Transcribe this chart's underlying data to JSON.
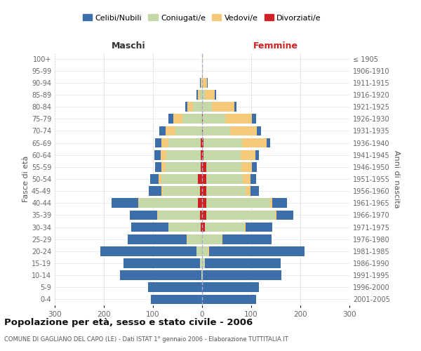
{
  "age_groups": [
    "0-4",
    "5-9",
    "10-14",
    "15-19",
    "20-24",
    "25-29",
    "30-34",
    "35-39",
    "40-44",
    "45-49",
    "50-54",
    "55-59",
    "60-64",
    "65-69",
    "70-74",
    "75-79",
    "80-84",
    "85-89",
    "90-94",
    "95-99",
    "100+"
  ],
  "birth_years": [
    "2001-2005",
    "1996-2000",
    "1991-1995",
    "1986-1990",
    "1981-1985",
    "1976-1980",
    "1971-1975",
    "1966-1970",
    "1961-1965",
    "1956-1960",
    "1951-1955",
    "1946-1950",
    "1941-1945",
    "1936-1940",
    "1931-1935",
    "1926-1930",
    "1921-1925",
    "1916-1920",
    "1911-1915",
    "1906-1910",
    "≤ 1905"
  ],
  "maschi_celibi": [
    105,
    110,
    165,
    155,
    195,
    120,
    75,
    55,
    55,
    25,
    18,
    13,
    12,
    12,
    12,
    10,
    5,
    2,
    1,
    0,
    0
  ],
  "maschi_coniugati": [
    0,
    0,
    2,
    5,
    12,
    30,
    65,
    85,
    120,
    75,
    75,
    72,
    70,
    65,
    55,
    40,
    18,
    5,
    2,
    0,
    0
  ],
  "maschi_vedovi": [
    0,
    0,
    0,
    0,
    0,
    1,
    1,
    2,
    2,
    3,
    5,
    8,
    12,
    15,
    20,
    18,
    12,
    4,
    1,
    0,
    0
  ],
  "maschi_divorziati": [
    0,
    0,
    0,
    0,
    0,
    0,
    3,
    5,
    8,
    5,
    8,
    3,
    3,
    3,
    0,
    0,
    0,
    0,
    0,
    0,
    0
  ],
  "femmine_celibi": [
    110,
    115,
    160,
    155,
    195,
    100,
    55,
    35,
    30,
    18,
    12,
    10,
    8,
    8,
    8,
    8,
    5,
    3,
    1,
    0,
    0
  ],
  "femmine_coniugati": [
    0,
    0,
    2,
    5,
    12,
    40,
    80,
    140,
    130,
    80,
    75,
    72,
    75,
    78,
    55,
    45,
    20,
    5,
    2,
    0,
    0
  ],
  "femmine_vedovi": [
    0,
    0,
    0,
    0,
    2,
    2,
    3,
    3,
    5,
    10,
    15,
    22,
    30,
    50,
    55,
    55,
    45,
    20,
    8,
    2,
    1
  ],
  "femmine_divorziati": [
    0,
    0,
    0,
    0,
    0,
    0,
    5,
    8,
    8,
    8,
    8,
    8,
    3,
    3,
    2,
    2,
    0,
    0,
    0,
    0,
    0
  ],
  "colors": {
    "celibi": "#3c6faa",
    "coniugati": "#c5d9a8",
    "vedovi": "#f5c97a",
    "divorziati": "#cc2222"
  },
  "title": "Popolazione per età, sesso e stato civile - 2006",
  "subtitle": "COMUNE DI GAGLIANO DEL CAPO (LE) - Dati ISTAT 1° gennaio 2006 - Elaborazione TUTTITALIA.IT",
  "xlabel_left": "Maschi",
  "xlabel_right": "Femmine",
  "ylabel_left": "Fasce di età",
  "ylabel_right": "Anni di nascita",
  "xlim": 300,
  "bg_color": "#ffffff",
  "grid_color": "#cccccc"
}
